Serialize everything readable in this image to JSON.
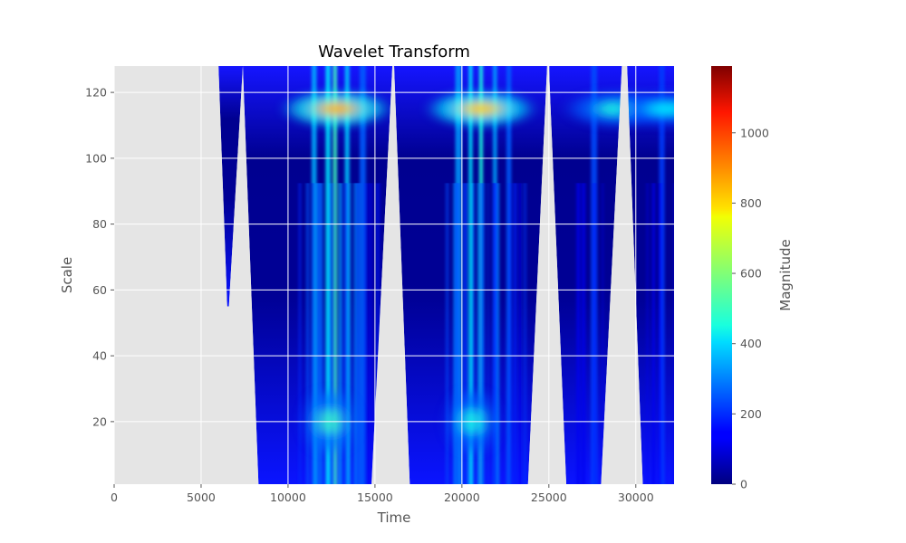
{
  "chart_data": {
    "type": "heatmap",
    "title": "Wavelet Transform",
    "xlabel": "Time",
    "ylabel": "Scale",
    "xlim": [
      0,
      32200
    ],
    "ylim": [
      1,
      128
    ],
    "x_ticks": [
      0,
      5000,
      10000,
      15000,
      20000,
      25000,
      30000
    ],
    "y_ticks": [
      20,
      40,
      60,
      80,
      100,
      120
    ],
    "grid": true,
    "style": "ggplot",
    "background_color": "#e5e5e5",
    "colormap": "jet",
    "colorbar": {
      "label": "Magnitude",
      "range": [
        0,
        1190
      ],
      "ticks": [
        0,
        200,
        400,
        600,
        800,
        1000
      ]
    },
    "cone_regions": [
      {
        "x_top_start": 6000,
        "x_top_end": 7400,
        "x_bottom_start": 6500,
        "x_bottom_end": 6600,
        "y_bottom": 55
      },
      {
        "x_top_start": 7400,
        "x_top_end": 16000,
        "x_bottom_start": 8300,
        "x_bottom_end": 14800,
        "y_bottom": 1
      },
      {
        "x_top_start": 16100,
        "x_top_end": 24900,
        "x_bottom_start": 17000,
        "x_bottom_end": 23800,
        "y_bottom": 1
      },
      {
        "x_top_start": 25000,
        "x_top_end": 29200,
        "x_bottom_start": 26000,
        "x_bottom_end": 28000,
        "y_bottom": 1
      },
      {
        "x_top_start": 29500,
        "x_top_end": 32200,
        "x_bottom_start": 30400,
        "x_bottom_end": 32200,
        "y_bottom": 1
      }
    ],
    "hotspots": [
      {
        "time": 12800,
        "scale": 115,
        "magnitude": 830
      },
      {
        "time": 21100,
        "scale": 115,
        "magnitude": 800
      },
      {
        "time": 29000,
        "scale": 115,
        "magnitude": 480
      },
      {
        "time": 31800,
        "scale": 115,
        "magnitude": 420
      },
      {
        "time": 12400,
        "scale": 20,
        "magnitude": 520
      },
      {
        "time": 20600,
        "scale": 20,
        "magnitude": 480
      }
    ],
    "bands": [
      {
        "time": 11500,
        "magnitude": 360
      },
      {
        "time": 12300,
        "magnitude": 420
      },
      {
        "time": 12700,
        "magnitude": 520
      },
      {
        "time": 13400,
        "magnitude": 380
      },
      {
        "time": 14300,
        "magnitude": 260
      },
      {
        "time": 19800,
        "magnitude": 330
      },
      {
        "time": 20500,
        "magnitude": 420
      },
      {
        "time": 21100,
        "magnitude": 480
      },
      {
        "time": 21900,
        "magnitude": 340
      },
      {
        "time": 22700,
        "magnitude": 260
      },
      {
        "time": 27600,
        "magnitude": 240
      },
      {
        "time": 31500,
        "magnitude": 220
      }
    ]
  }
}
